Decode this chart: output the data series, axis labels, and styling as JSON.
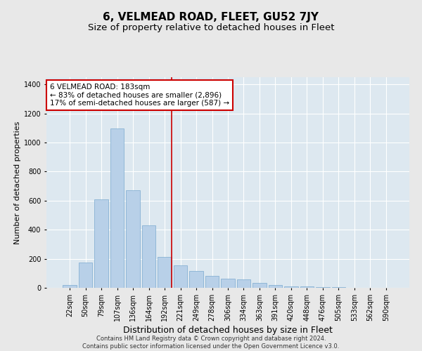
{
  "title": "6, VELMEAD ROAD, FLEET, GU52 7JY",
  "subtitle": "Size of property relative to detached houses in Fleet",
  "xlabel": "Distribution of detached houses by size in Fleet",
  "ylabel": "Number of detached properties",
  "categories": [
    "22sqm",
    "50sqm",
    "79sqm",
    "107sqm",
    "136sqm",
    "164sqm",
    "192sqm",
    "221sqm",
    "249sqm",
    "278sqm",
    "306sqm",
    "334sqm",
    "363sqm",
    "391sqm",
    "420sqm",
    "448sqm",
    "476sqm",
    "505sqm",
    "533sqm",
    "562sqm",
    "590sqm"
  ],
  "values": [
    20,
    175,
    610,
    1095,
    670,
    430,
    215,
    155,
    115,
    80,
    65,
    60,
    35,
    20,
    10,
    8,
    5,
    3,
    2,
    1,
    0
  ],
  "bar_color": "#b8d0e8",
  "bar_edge_color": "#7aaacf",
  "background_color": "#dde8f0",
  "grid_color": "#ffffff",
  "vline_x_index": 6.45,
  "vline_color": "#cc0000",
  "annotation_text": "6 VELMEAD ROAD: 183sqm\n← 83% of detached houses are smaller (2,896)\n17% of semi-detached houses are larger (587) →",
  "annotation_box_facecolor": "#ffffff",
  "annotation_box_edgecolor": "#cc0000",
  "ylim": [
    0,
    1450
  ],
  "yticks": [
    0,
    200,
    400,
    600,
    800,
    1000,
    1200,
    1400
  ],
  "footer": "Contains HM Land Registry data © Crown copyright and database right 2024.\nContains public sector information licensed under the Open Government Licence v3.0.",
  "title_fontsize": 11,
  "subtitle_fontsize": 9.5,
  "xlabel_fontsize": 9,
  "ylabel_fontsize": 8,
  "tick_fontsize": 7,
  "footer_fontsize": 6,
  "annotation_fontsize": 7.5
}
